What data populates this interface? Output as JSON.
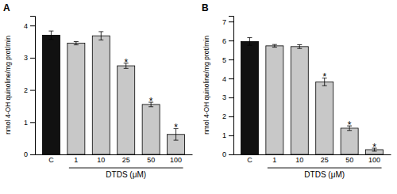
{
  "chart_data": [
    {
      "type": "bar",
      "title": "A",
      "categories": [
        "C",
        "1",
        "10",
        "25",
        "50",
        "100"
      ],
      "values": [
        3.7,
        3.45,
        3.68,
        2.75,
        1.55,
        0.62
      ],
      "errors": [
        0.13,
        0.05,
        0.13,
        0.08,
        0.07,
        0.18
      ],
      "colors": [
        "#111111",
        "#c8c8c8",
        "#c8c8c8",
        "#c8c8c8",
        "#c8c8c8",
        "#c8c8c8"
      ],
      "annotations": [
        {
          "category": "25",
          "text": "*"
        },
        {
          "category": "50",
          "text": "*"
        },
        {
          "category": "100",
          "text": "*"
        }
      ],
      "ylabel": "nmol 4-OH quinoline/mg prot/min",
      "xlabel": "DTDS (μM)",
      "ylim": [
        0,
        4.3
      ],
      "yticks": [
        0,
        1,
        2,
        3,
        4
      ],
      "grid": false
    },
    {
      "type": "bar",
      "title": "B",
      "categories": [
        "C",
        "1",
        "10",
        "25",
        "50",
        "100"
      ],
      "values": [
        5.95,
        5.72,
        5.68,
        3.82,
        1.38,
        0.25
      ],
      "errors": [
        0.2,
        0.07,
        0.1,
        0.2,
        0.12,
        0.08
      ],
      "colors": [
        "#111111",
        "#c8c8c8",
        "#c8c8c8",
        "#c8c8c8",
        "#c8c8c8",
        "#c8c8c8"
      ],
      "annotations": [
        {
          "category": "25",
          "text": "*"
        },
        {
          "category": "50",
          "text": "*"
        },
        {
          "category": "100",
          "text": "*"
        }
      ],
      "ylabel": "nmol 4-OH quinoline/mg prot/min",
      "xlabel": "DTDS (μM)",
      "ylim": [
        0,
        7.3
      ],
      "yticks": [
        0,
        1,
        2,
        3,
        4,
        5,
        6,
        7
      ],
      "grid": false
    }
  ]
}
